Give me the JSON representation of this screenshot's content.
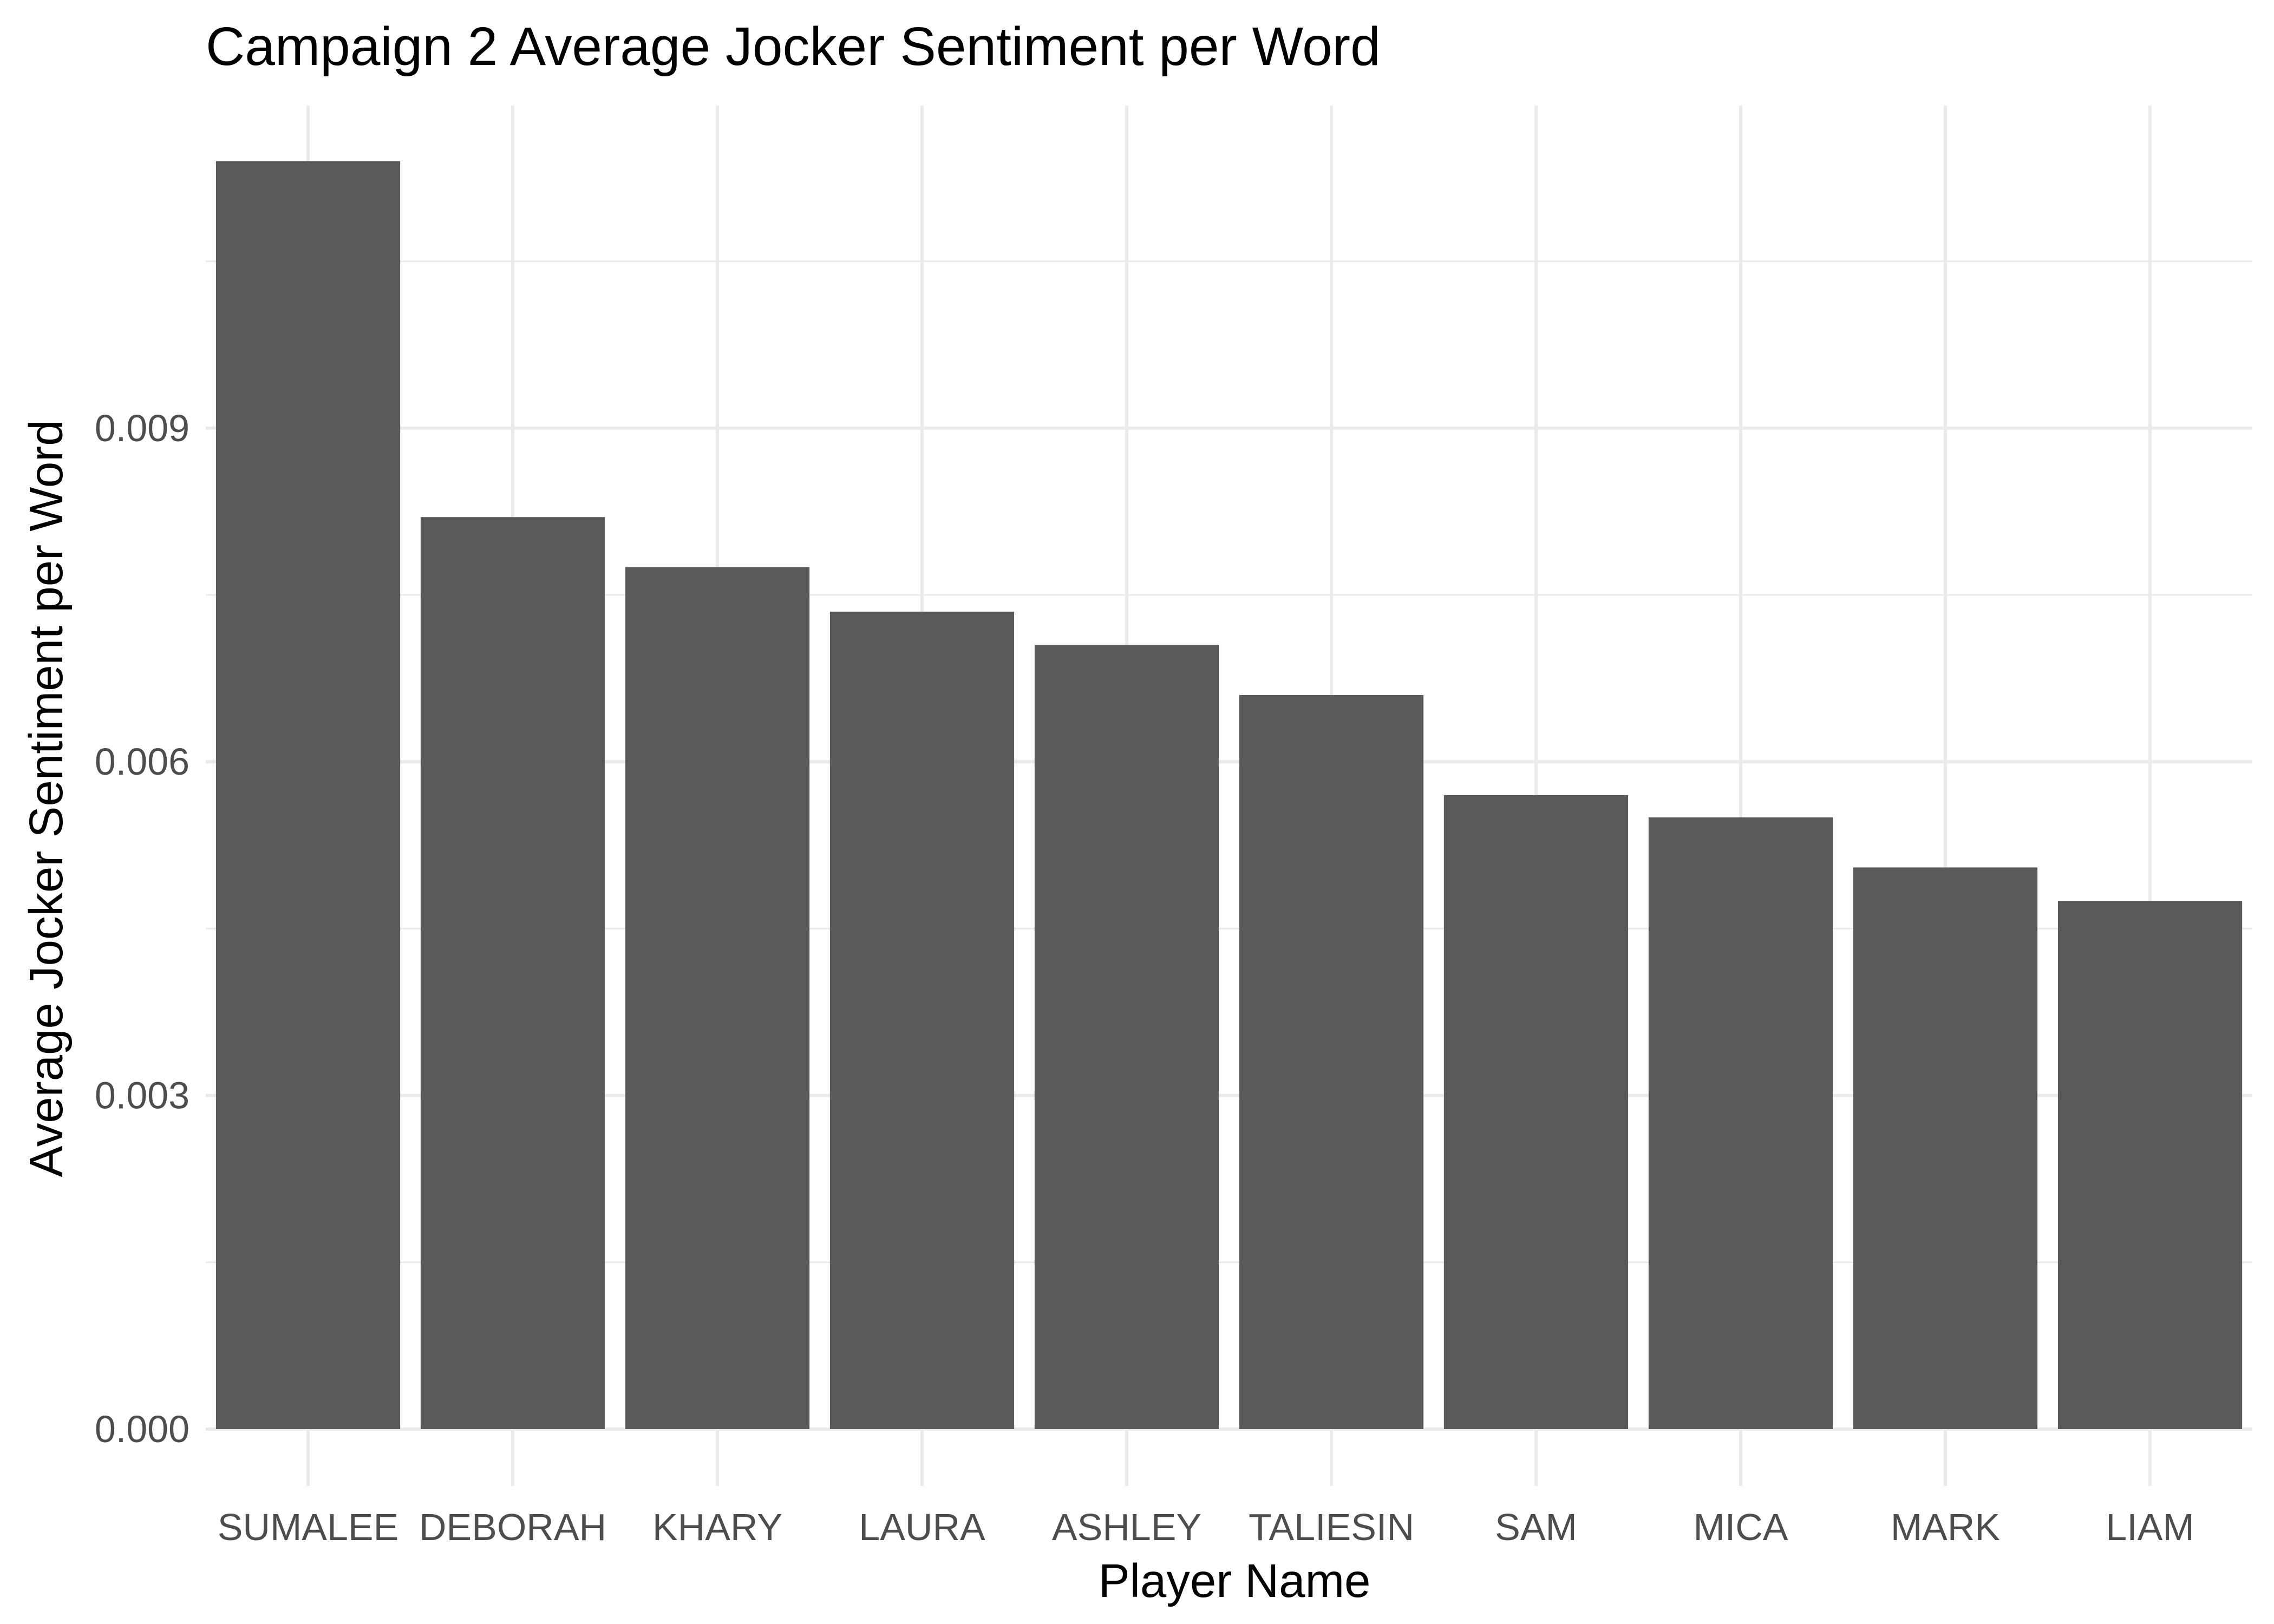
{
  "chart_data": {
    "type": "bar",
    "title": "Campaign 2 Average Jocker Sentiment per Word",
    "xlabel": "Player Name",
    "ylabel": "Average Jocker Sentiment per Word",
    "categories": [
      "SUMALEE",
      "DEBORAH",
      "KHARY",
      "LAURA",
      "ASHLEY",
      "TALIESIN",
      "SAM",
      "MICA",
      "MARK",
      "LIAM"
    ],
    "values": [
      0.0114,
      0.0082,
      0.00775,
      0.00735,
      0.00705,
      0.0066,
      0.0057,
      0.0055,
      0.00505,
      0.00475
    ],
    "ylim": [
      0,
      0.0119
    ],
    "yticks": [
      0,
      0.003,
      0.006,
      0.009
    ],
    "ytick_labels": [
      "0.000",
      "0.003",
      "0.006",
      "0.009"
    ],
    "grid": true,
    "bar_color": "#595959",
    "grid_color": "#ebebeb"
  }
}
